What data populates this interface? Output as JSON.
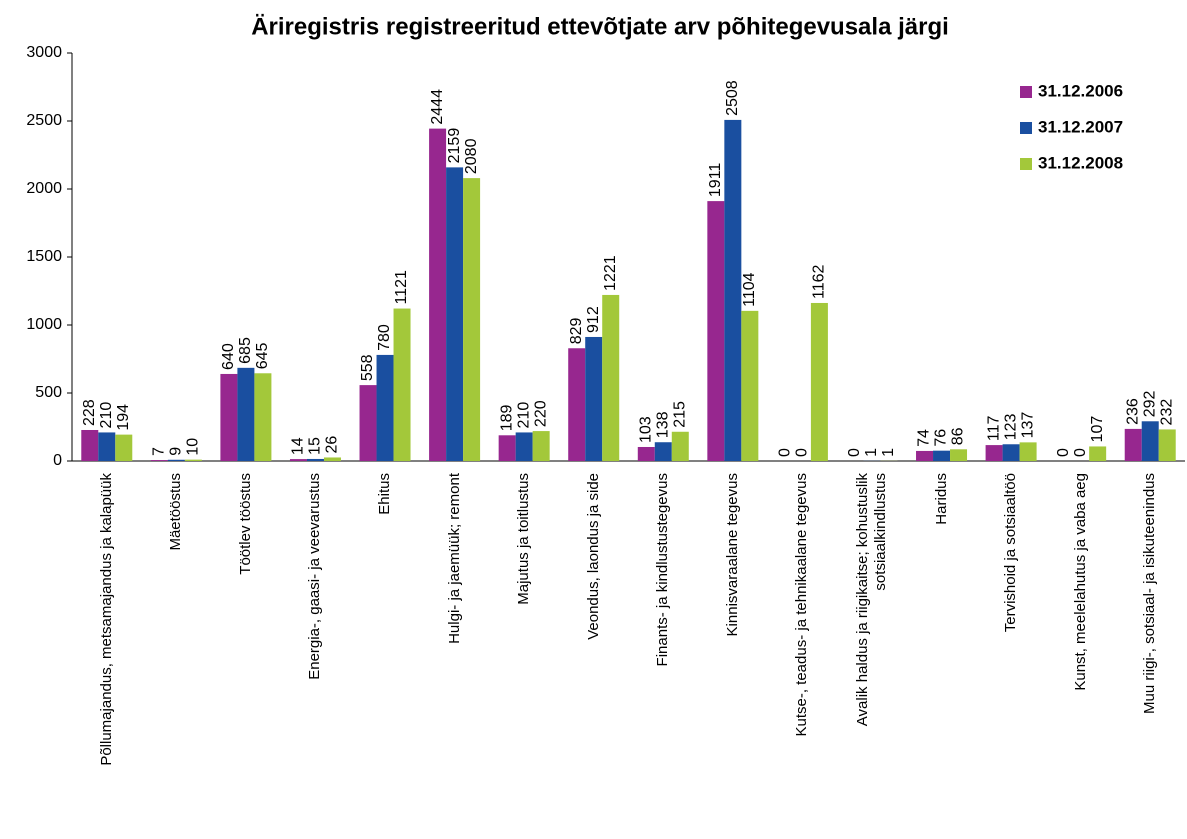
{
  "chart_data": {
    "type": "bar",
    "title": "Äriregistris registreeritud ettevõtjate arv põhitegevusala järgi",
    "categories": [
      "Põllumajandus, metsamajandus ja kalapüük",
      "Mäetööstus",
      "Töötlev tööstus",
      "Energia-, gaasi- ja veevarustus",
      "Ehitus",
      "Hulgi- ja jaemüük; remont",
      "Majutus ja toitlustus",
      "Veondus, laondus ja side",
      "Finants- ja kindlustustegevus",
      "Kinnisvaraalane tegevus",
      "Kutse-, teadus- ja tehnikaalane tegevus",
      "Avalik haldus ja riigikaitse; kohustuslik sotsiaalkindlustus",
      "Haridus",
      "Tervishoid ja sotsiaaltöö",
      "Kunst, meelelahutus ja vaba aeg",
      "Muu riigi-, sotsiaal- ja isikuteenindus"
    ],
    "series": [
      {
        "name": "31.12.2006",
        "color": "#97278f",
        "values": [
          228,
          7,
          640,
          14,
          558,
          2444,
          189,
          829,
          103,
          1911,
          0,
          0,
          74,
          117,
          0,
          236
        ]
      },
      {
        "name": "31.12.2007",
        "color": "#1a4fa0",
        "values": [
          210,
          9,
          685,
          15,
          780,
          2159,
          210,
          912,
          138,
          2508,
          0,
          1,
          76,
          123,
          0,
          292
        ]
      },
      {
        "name": "31.12.2008",
        "color": "#a3c83a",
        "values": [
          194,
          10,
          645,
          26,
          1121,
          2080,
          220,
          1221,
          215,
          1104,
          1162,
          1,
          86,
          137,
          107,
          232
        ]
      }
    ],
    "ylim": [
      0,
      3000
    ],
    "yticks": [
      0,
      500,
      1000,
      1500,
      2000,
      2500,
      3000
    ],
    "grid": false,
    "legend": "top-right"
  }
}
